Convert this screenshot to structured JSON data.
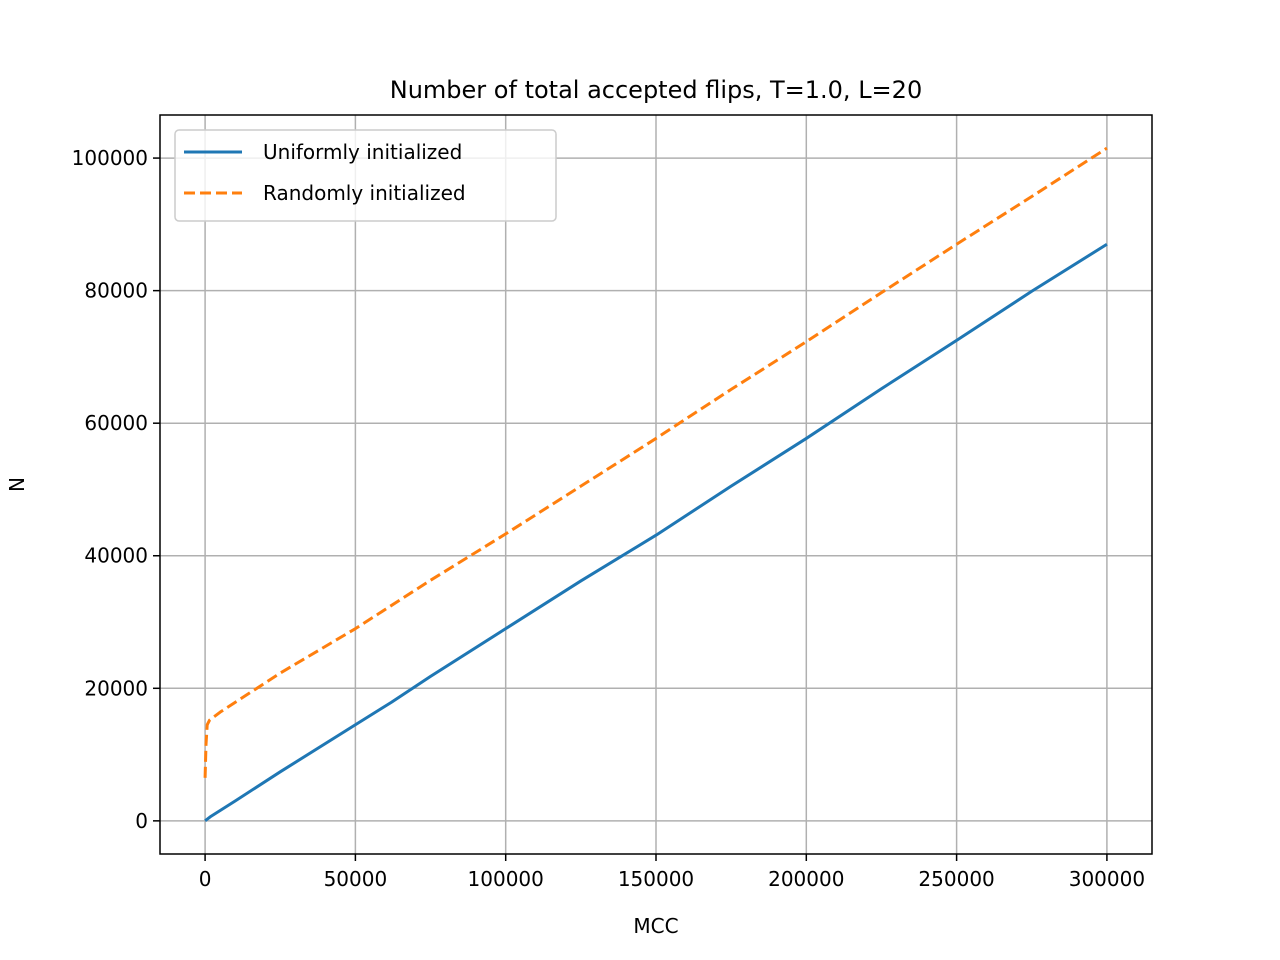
{
  "chart_data": {
    "type": "line",
    "title": "Number of total accepted flips, T=1.0, L=20",
    "xlabel": "MCC",
    "ylabel": "N",
    "xlim": [
      -15000,
      315000
    ],
    "ylim": [
      -5000,
      106500
    ],
    "xticks": [
      0,
      50000,
      100000,
      150000,
      200000,
      250000,
      300000
    ],
    "yticks": [
      0,
      20000,
      40000,
      60000,
      80000,
      100000
    ],
    "grid": true,
    "legend_position": "upper-left",
    "series": [
      {
        "name": "Uniformly initialized",
        "color": "#1f77b4",
        "style": "solid",
        "x": [
          0,
          2000,
          10000,
          25000,
          50000,
          62000,
          75000,
          100000,
          125000,
          150000,
          175000,
          200000,
          225000,
          250000,
          275000,
          300000
        ],
        "y": [
          0,
          700,
          3000,
          7400,
          14500,
          17900,
          21800,
          29000,
          36200,
          43100,
          50500,
          57700,
          65200,
          72500,
          79900,
          87000
        ]
      },
      {
        "name": "Randomly initialized",
        "color": "#ff7f0e",
        "style": "dashed",
        "x": [
          0,
          300,
          700,
          1500,
          5000,
          25000,
          50000,
          75000,
          100000,
          125000,
          150000,
          175000,
          200000,
          225000,
          250000,
          275000,
          300000
        ],
        "y": [
          6500,
          11500,
          14500,
          15200,
          16400,
          22300,
          29000,
          36300,
          43300,
          50500,
          57700,
          65100,
          72300,
          79700,
          87000,
          94200,
          101500
        ]
      }
    ]
  }
}
